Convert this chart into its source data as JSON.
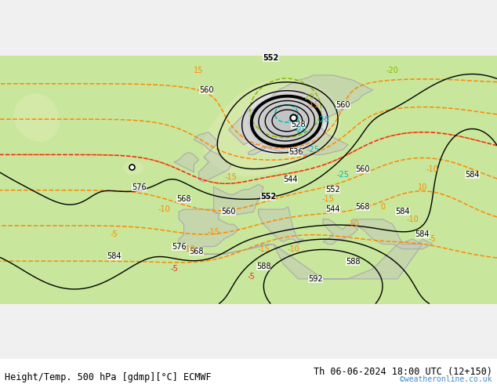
{
  "title_left": "Height/Temp. 500 hPa [gdmp][°C] ECMWF",
  "title_right": "Th 06-06-2024 18:00 UTC (12+150)",
  "watermark": "©weatheronline.co.uk",
  "bg_green": "#c8e6a0",
  "bg_gray": "#d8d8d8",
  "bg_white": "#e8e8e8",
  "coast_color": "#aaaaaa",
  "height_color": "#000000",
  "temp_orange": "#ff8800",
  "temp_cyan": "#00bbbb",
  "temp_red": "#ee2222",
  "temp_green": "#88bb00",
  "font_size_title": 8.5,
  "font_size_watermark": 7
}
